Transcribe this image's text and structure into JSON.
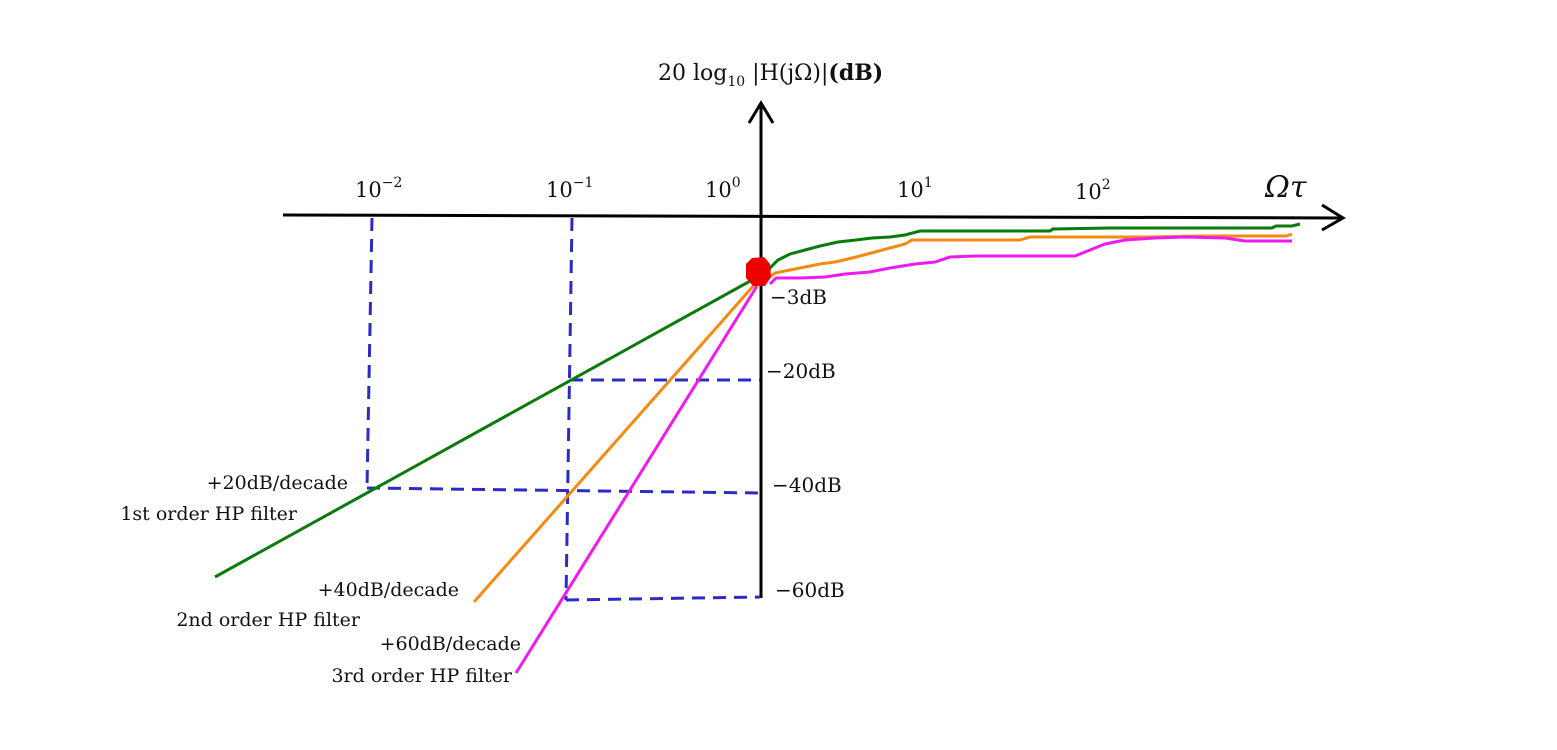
{
  "diagram": {
    "y_axis_label": {
      "prefix": "20 log",
      "subscript": "10",
      "expr": " |H(jΩ)|",
      "unit": "(dB)"
    },
    "x_axis_label": "Ωτ",
    "x_ticks": [
      {
        "base": "10",
        "exp": "−2"
      },
      {
        "base": "10",
        "exp": "−1"
      },
      {
        "base": "10",
        "exp": "0"
      },
      {
        "base": "10",
        "exp": "1"
      },
      {
        "base": "10",
        "exp": "2"
      }
    ],
    "db_labels": [
      "−3dB",
      "−20dB",
      "−40dB",
      "−60dB"
    ],
    "filters": [
      {
        "order": 1,
        "slope_label": "+20dB/decade",
        "name_label": "1st order HP filter",
        "color": "#0a7a0a"
      },
      {
        "order": 2,
        "slope_label": "+40dB/decade",
        "name_label": "2nd order HP filter",
        "color": "#f58a10"
      },
      {
        "order": 3,
        "slope_label": "+60dB/decade",
        "name_label": "3rd order HP filter",
        "color": "#f01af0"
      }
    ],
    "guide_color": "#2b2bc8",
    "corner_marker_color": "#ee0000"
  }
}
